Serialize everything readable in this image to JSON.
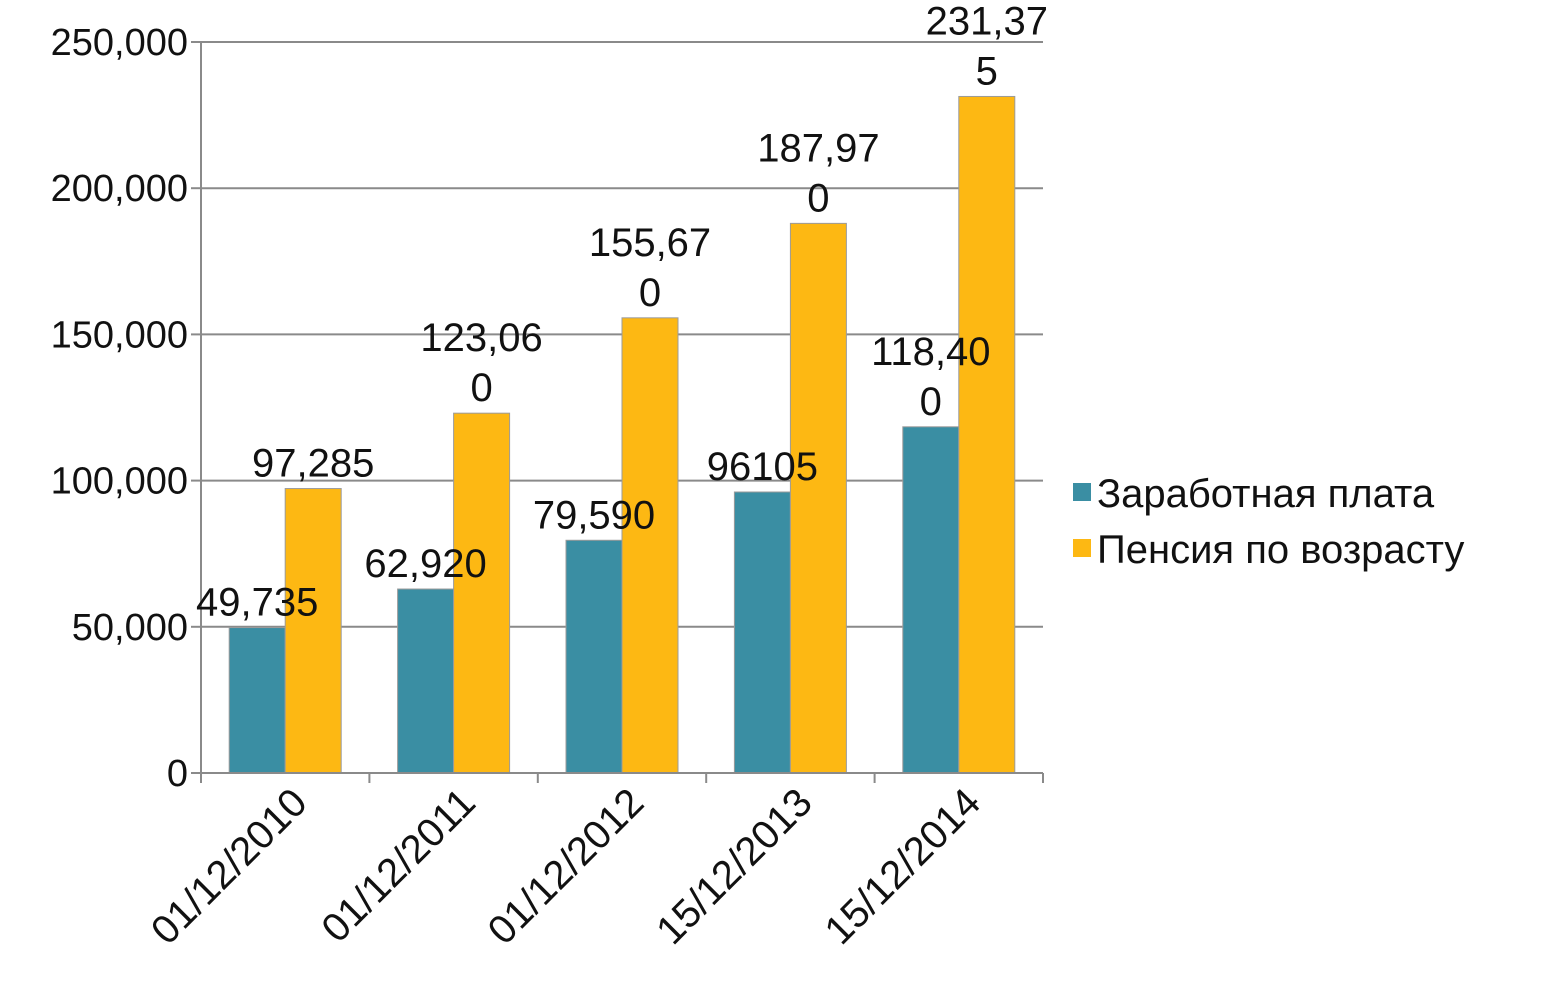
{
  "chart_data": {
    "type": "bar",
    "title": "",
    "xlabel": "",
    "ylabel": "",
    "categories": [
      "01/12/2010",
      "01/12/2011",
      "01/12/2012",
      "15/12/2013",
      "15/12/2014"
    ],
    "series": [
      {
        "name": "Заработная плата",
        "color": "#3A8EA3",
        "values": [
          49735,
          62920,
          79590,
          96105,
          118400
        ],
        "labels": [
          [
            "49,735"
          ],
          [
            "62,920"
          ],
          [
            "79,590"
          ],
          [
            "96105"
          ],
          [
            "118,40",
            "0"
          ]
        ]
      },
      {
        "name": "Пенсия по возрасту",
        "color": "#FDB813",
        "values": [
          97285,
          123060,
          155670,
          187970,
          231375
        ],
        "labels": [
          [
            "97,285"
          ],
          [
            "123,06",
            "0"
          ],
          [
            "155,67",
            "0"
          ],
          [
            "187,97",
            "0"
          ],
          [
            "231,37",
            "5"
          ]
        ]
      }
    ],
    "ylim": [
      0,
      250000
    ],
    "yticks": [
      0,
      50000,
      100000,
      150000,
      200000,
      250000
    ],
    "ytick_labels": [
      "0",
      "50,000",
      "100,000",
      "150,000",
      "200,000",
      "250,000"
    ],
    "grid": true,
    "legend": "right"
  }
}
